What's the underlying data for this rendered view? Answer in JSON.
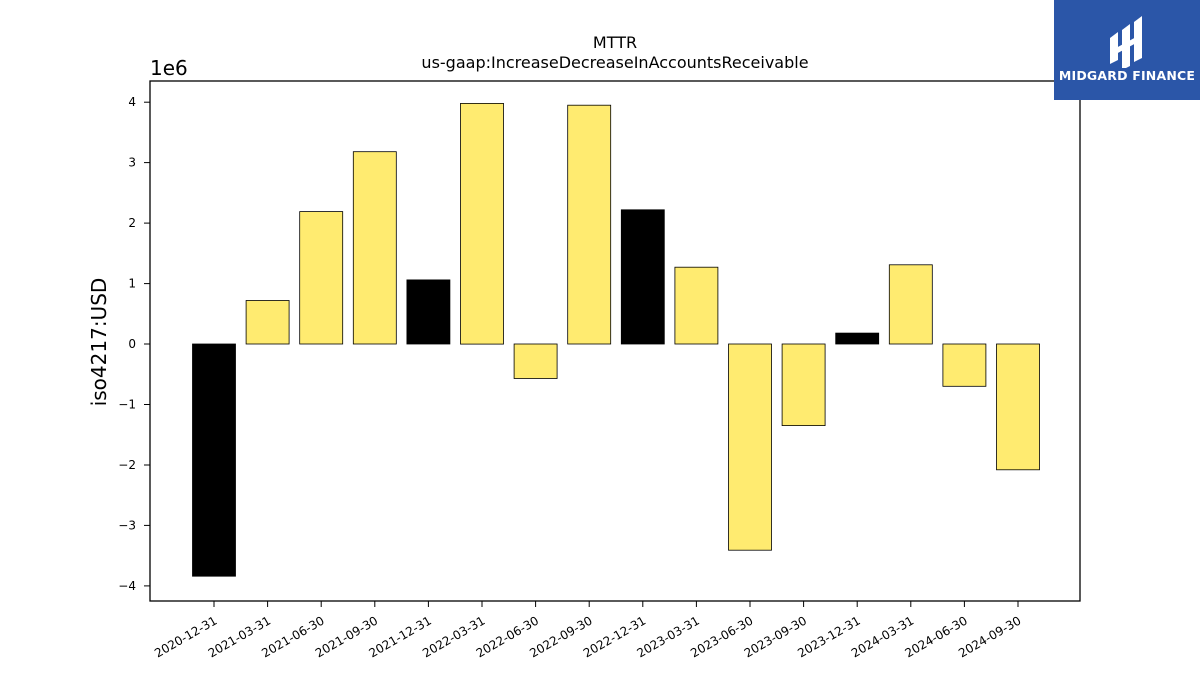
{
  "chart_data": {
    "type": "bar",
    "title": "MTTR",
    "subtitle": "us-gaap:IncreaseDecreaseInAccountsReceivable",
    "ylabel": "iso4217:USD",
    "xlabel": "",
    "scale_label": "1e6",
    "ylim": [
      -4.25,
      4.35
    ],
    "yticks": [
      -4,
      -3,
      -2,
      -1,
      0,
      1,
      2,
      3,
      4
    ],
    "ytick_labels": [
      "−4",
      "−3",
      "−2",
      "−1",
      "0",
      "1",
      "2",
      "3",
      "4"
    ],
    "categories": [
      "2020-12-31",
      "2021-03-31",
      "2021-06-30",
      "2021-09-30",
      "2021-12-31",
      "2022-03-31",
      "2022-06-30",
      "2022-09-30",
      "2022-12-31",
      "2023-03-31",
      "2023-06-30",
      "2023-09-30",
      "2023-12-31",
      "2024-03-31",
      "2024-06-30",
      "2024-09-30"
    ],
    "values": [
      -3.84,
      0.72,
      2.19,
      3.18,
      1.06,
      3.98,
      -0.57,
      3.95,
      2.22,
      1.27,
      -3.41,
      -1.35,
      0.18,
      1.31,
      -0.7,
      -2.08
    ],
    "bar_colors": [
      "#000000",
      "#ffeb70",
      "#ffeb70",
      "#ffeb70",
      "#000000",
      "#ffeb70",
      "#ffeb70",
      "#ffeb70",
      "#000000",
      "#ffeb70",
      "#ffeb70",
      "#ffeb70",
      "#000000",
      "#ffeb70",
      "#ffeb70",
      "#ffeb70"
    ],
    "grid": false,
    "legend": "none"
  },
  "logo": {
    "text": "MIDGARD FINANCE",
    "background": "#2b56a8"
  }
}
